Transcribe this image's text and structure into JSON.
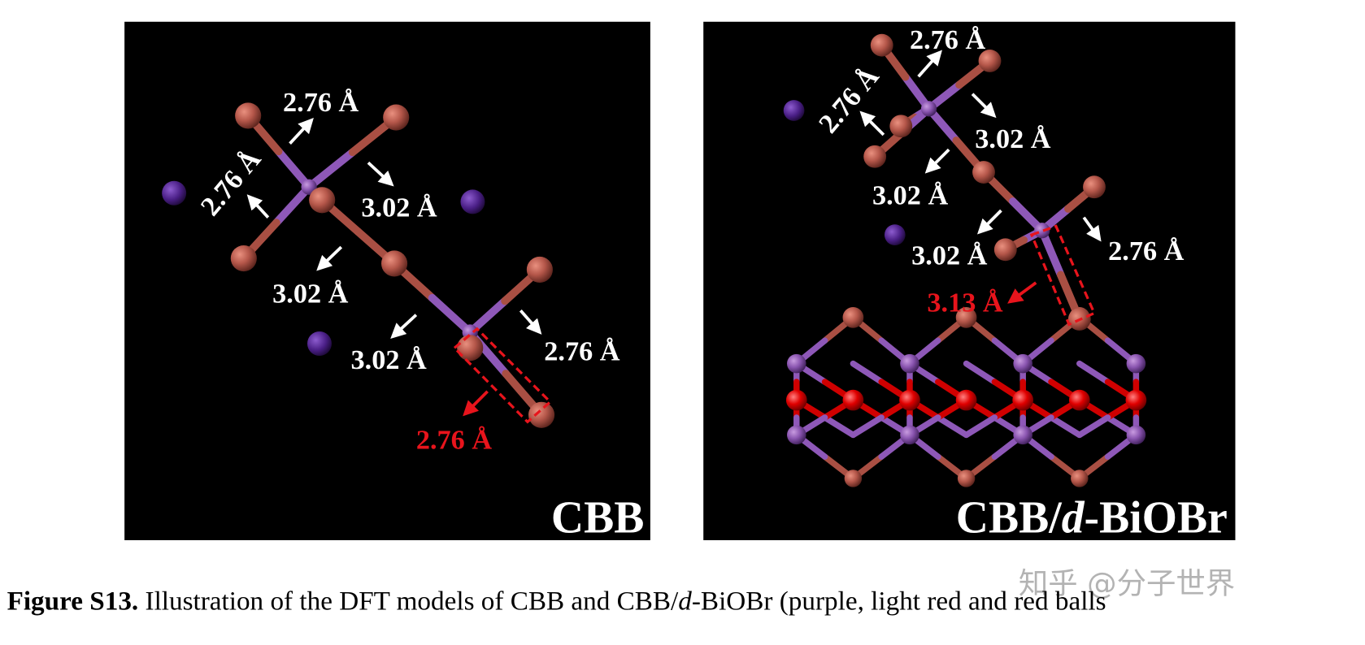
{
  "panels": [
    {
      "name_parts": [
        "CBB"
      ],
      "labels": [
        "2.76 Å",
        "2.76 Å",
        "3.02 Å",
        "3.02 Å",
        "3.02 Å",
        "2.76 Å"
      ],
      "highlight_label": "2.76 Å"
    },
    {
      "name_parts": [
        "CBB/",
        "d",
        "-BiOBr"
      ],
      "labels": [
        "2.76 Å",
        "2.76 Å",
        "3.02 Å",
        "3.02 Å",
        "3.02 Å",
        "2.76 Å"
      ],
      "highlight_label": "3.13 Å"
    }
  ],
  "caption": {
    "lead": "Figure S13.",
    "parts": [
      " Illustration of the DFT models of CBB and CBB/",
      "d",
      "-BiOBr (purple, light red and red balls"
    ]
  },
  "watermark": "知乎 @分子世界"
}
